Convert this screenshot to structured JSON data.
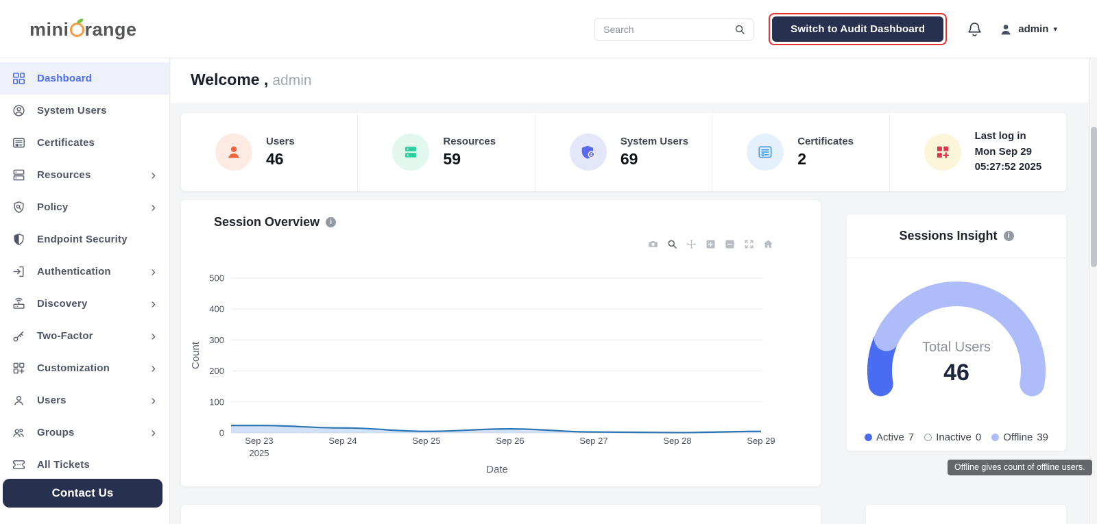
{
  "header": {
    "logo_part1": "mini",
    "logo_part2": "range",
    "search_placeholder": "Search",
    "switch_button_label": "Switch to Audit Dashboard",
    "username": "admin"
  },
  "sidebar": {
    "items": [
      {
        "label": "Dashboard"
      },
      {
        "label": "System Users"
      },
      {
        "label": "Certificates"
      },
      {
        "label": "Resources"
      },
      {
        "label": "Policy"
      },
      {
        "label": "Endpoint Security"
      },
      {
        "label": "Authentication"
      },
      {
        "label": "Discovery"
      },
      {
        "label": "Two-Factor"
      },
      {
        "label": "Customization"
      },
      {
        "label": "Users"
      },
      {
        "label": "Groups"
      },
      {
        "label": "All Tickets"
      }
    ],
    "contact_button_label": "Contact Us"
  },
  "main": {
    "welcome_prefix": "Welcome ,",
    "welcome_user": "admin"
  },
  "stats": {
    "cards": [
      {
        "label": "Users",
        "value": "46"
      },
      {
        "label": "Resources",
        "value": "59"
      },
      {
        "label": "System Users",
        "value": "69"
      },
      {
        "label": "Certificates",
        "value": "2"
      },
      {
        "label": "Last log in",
        "line1": "Mon Sep 29",
        "line2": "05:27:52 2025"
      }
    ]
  },
  "session_overview": {
    "title": "Session Overview"
  },
  "sessions_insight": {
    "title": "Sessions Insight",
    "center_label": "Total Users",
    "total_value": "46",
    "legend": [
      {
        "label": "Active",
        "value": "7"
      },
      {
        "label": "Inactive",
        "value": "0"
      },
      {
        "label": "Offline",
        "value": "39"
      }
    ]
  },
  "tooltip_text": "Offline gives count of offline users.",
  "colors": {
    "accent_blue": "#4a6cf7",
    "navy": "#27314f",
    "highlight_red": "#e8322d",
    "chart_line": "#2d76b6",
    "chart_fill": "#c9dcf3",
    "gauge_active": "#4a6cf3",
    "gauge_offline": "#aebdfa",
    "stat_orange": "#f0663e",
    "stat_green": "#2ecf9e",
    "stat_indigo": "#5a6af0",
    "stat_blue": "#4a9de8",
    "stat_red": "#d93a50"
  },
  "chart_data": [
    {
      "type": "area",
      "title": "Session Overview",
      "x": [
        "Sep 23",
        "Sep 24",
        "Sep 25",
        "Sep 26",
        "Sep 27",
        "Sep 28",
        "Sep 29"
      ],
      "x_year": "2025",
      "values": [
        24,
        16,
        5,
        13,
        3,
        1,
        5
      ],
      "xlabel": "Date",
      "ylabel": "Count",
      "ylim": [
        0,
        500
      ],
      "yticks": [
        0,
        100,
        200,
        300,
        400,
        500
      ],
      "grid": true,
      "legend_position": "none"
    },
    {
      "type": "gauge",
      "title": "Sessions Insight",
      "center_label": "Total Users",
      "total": 46,
      "arc_degrees": 200,
      "segments": [
        {
          "name": "Active",
          "value": 7
        },
        {
          "name": "Inactive",
          "value": 0
        },
        {
          "name": "Offline",
          "value": 39
        }
      ]
    }
  ]
}
